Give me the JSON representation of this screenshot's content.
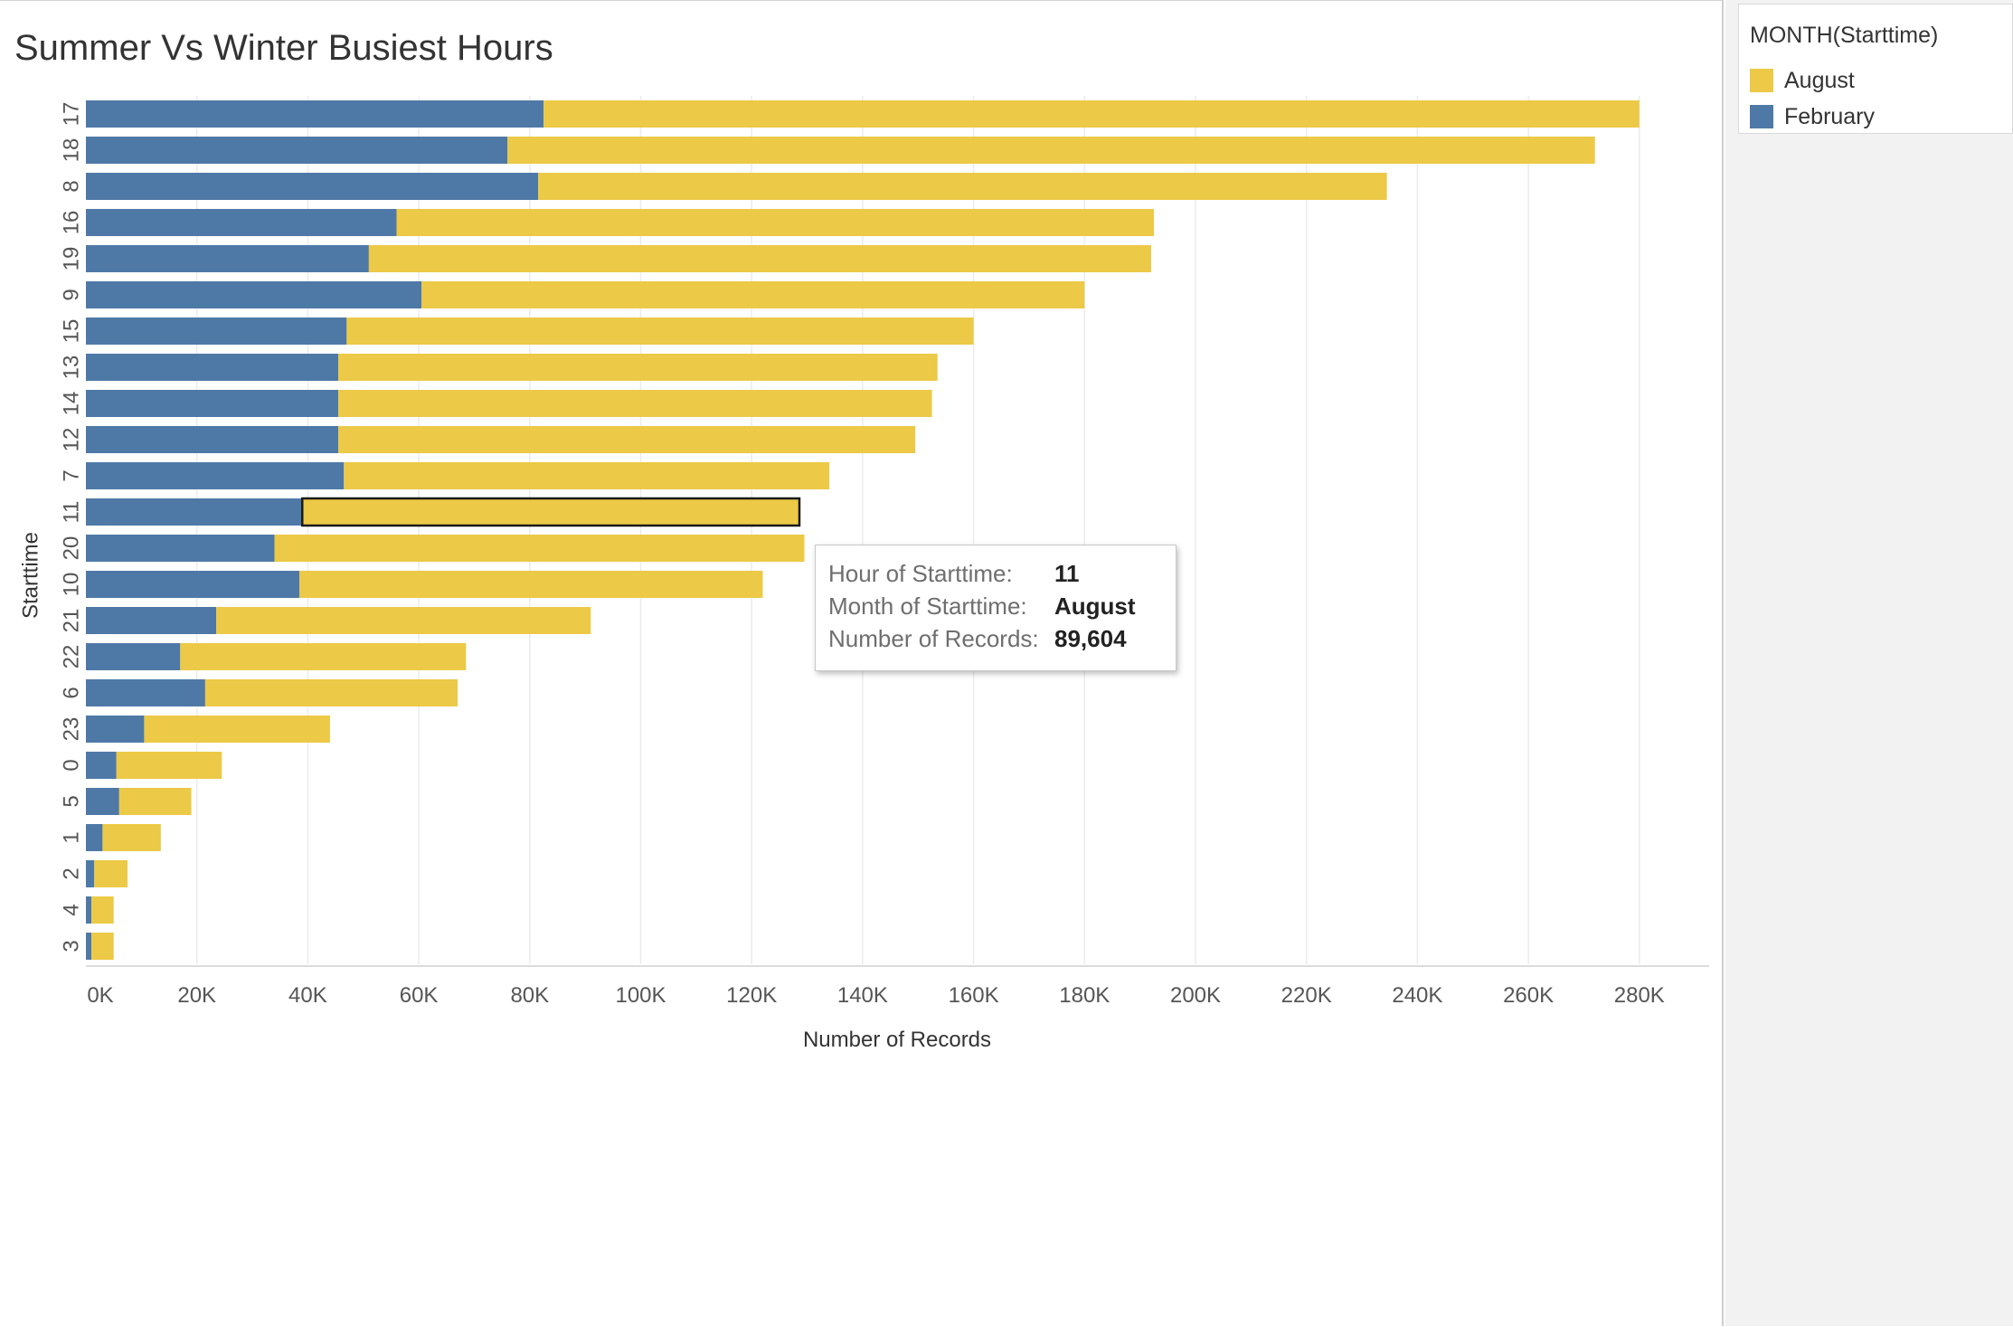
{
  "colors": {
    "august": "#ecc946",
    "february": "#4e79a7",
    "grid": "#ececec",
    "axis_text": "#555555"
  },
  "legend": {
    "title": "MONTH(Starttime)",
    "items": [
      {
        "label": "August",
        "color": "#ecc946"
      },
      {
        "label": "February",
        "color": "#4e79a7"
      }
    ]
  },
  "tooltip": {
    "rows": [
      {
        "label": "Hour of Starttime:",
        "value": "11"
      },
      {
        "label": "Month of Starttime:",
        "value": "August"
      },
      {
        "label": "Number of Records:",
        "value": "89,604"
      }
    ]
  },
  "chart_data": {
    "type": "bar",
    "orientation": "horizontal",
    "stacked": true,
    "title": "Summer Vs Winter Busiest Hours",
    "xlabel": "Number of Records",
    "ylabel": "Starttime",
    "xlim": [
      0,
      295000
    ],
    "xticks": [
      0,
      20000,
      40000,
      60000,
      80000,
      100000,
      120000,
      140000,
      160000,
      180000,
      200000,
      220000,
      240000,
      260000,
      280000
    ],
    "xtick_labels": [
      "0K",
      "20K",
      "40K",
      "60K",
      "80K",
      "100K",
      "120K",
      "140K",
      "160K",
      "180K",
      "200K",
      "220K",
      "240K",
      "260K",
      "280K"
    ],
    "categories": [
      "17",
      "18",
      "8",
      "16",
      "19",
      "9",
      "15",
      "13",
      "14",
      "12",
      "7",
      "11",
      "20",
      "10",
      "21",
      "22",
      "6",
      "23",
      "0",
      "5",
      "1",
      "2",
      "4",
      "3"
    ],
    "series": [
      {
        "name": "February",
        "color": "#4e79a7",
        "values": [
          82500,
          76000,
          81500,
          56000,
          51000,
          60500,
          47000,
          45500,
          45500,
          45500,
          46500,
          39000,
          34000,
          38500,
          23500,
          17000,
          21500,
          10500,
          5500,
          6000,
          3000,
          1500,
          1000,
          1000
        ]
      },
      {
        "name": "August",
        "color": "#ecc946",
        "values": [
          197500,
          196000,
          153000,
          136500,
          141000,
          119500,
          113000,
          108000,
          107000,
          104000,
          87500,
          89604,
          95500,
          83500,
          67500,
          51500,
          45500,
          33500,
          19000,
          13000,
          10500,
          6000,
          4000,
          4000
        ]
      }
    ],
    "highlighted": {
      "category": "11",
      "series": "August"
    },
    "grid": true,
    "legend_position": "right"
  }
}
